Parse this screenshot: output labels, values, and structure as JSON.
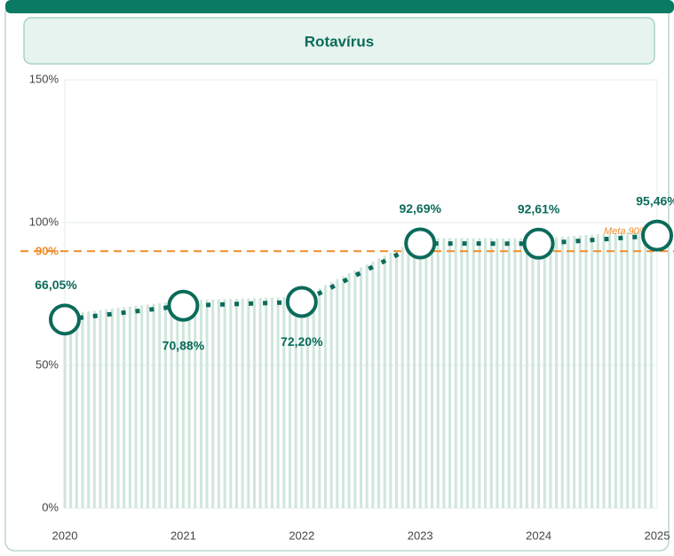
{
  "chart_data": {
    "type": "line",
    "title": "Rotavírus",
    "categories": [
      "2020",
      "2021",
      "2022",
      "2023",
      "2024",
      "2025"
    ],
    "series": [
      {
        "name": "Rotavírus",
        "color": "#0b6b5a",
        "values": [
          66.05,
          70.88,
          72.2,
          92.69,
          92.61,
          95.46
        ],
        "value_labels": [
          "66,05%",
          "70,88%",
          "72,20%",
          "92,69%",
          "92,61%",
          "95,46%"
        ]
      }
    ],
    "ylim": [
      0,
      150
    ],
    "yticks": [
      {
        "value": 0,
        "label": "0%"
      },
      {
        "value": 50,
        "label": "50%"
      },
      {
        "value": 100,
        "label": "100%"
      },
      {
        "value": 150,
        "label": "150%"
      }
    ],
    "target": {
      "value": 90,
      "label": "90%",
      "annotation": "Meta 90%",
      "color": "#f28c28"
    },
    "bar_color": "#cfe6dc"
  }
}
